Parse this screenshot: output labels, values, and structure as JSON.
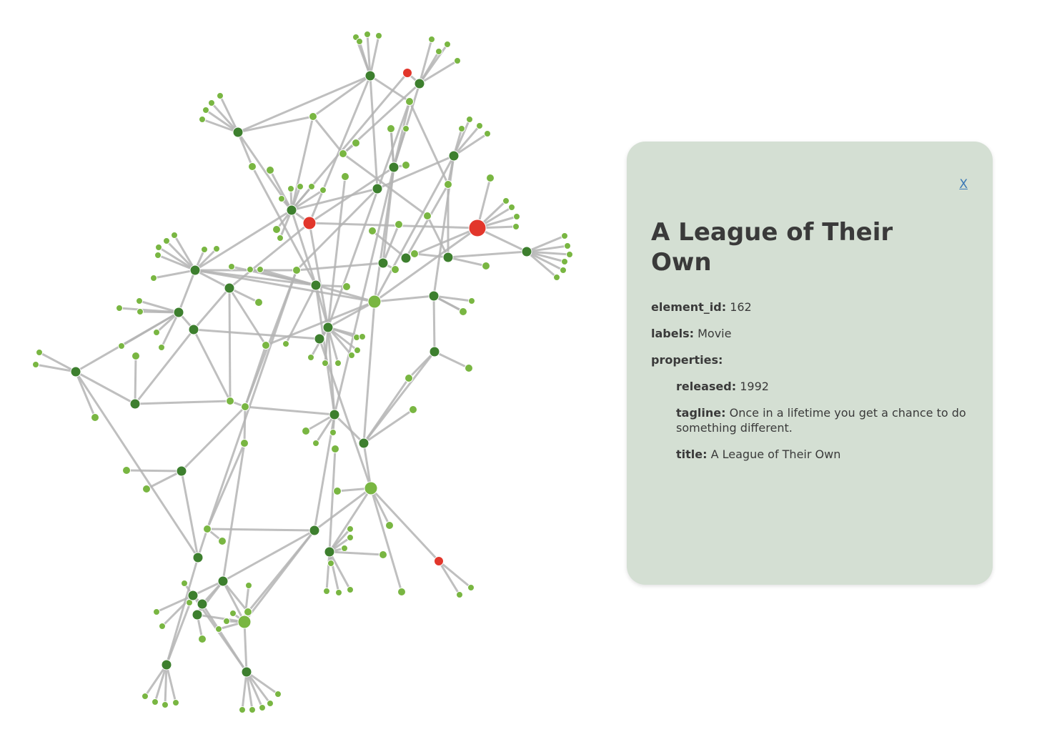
{
  "panel": {
    "close_label": "X",
    "title": "A League of Their Own",
    "fields": {
      "element_id": {
        "key": "element_id:",
        "value": "162"
      },
      "labels": {
        "key": "labels:",
        "value": "Movie"
      },
      "properties": {
        "key": "properties:"
      },
      "released": {
        "key": "released:",
        "value": "1992"
      },
      "tagline": {
        "key": "tagline:",
        "value": "Once in a lifetime you get a chance to do something different."
      },
      "title": {
        "key": "title:",
        "value": "A League of Their Own"
      }
    }
  },
  "graph": {
    "colors": {
      "edge": "#b4b4b4",
      "node_dark": "#3d7f2e",
      "node_light": "#79b642",
      "node_red": "#e2362b"
    }
  }
}
